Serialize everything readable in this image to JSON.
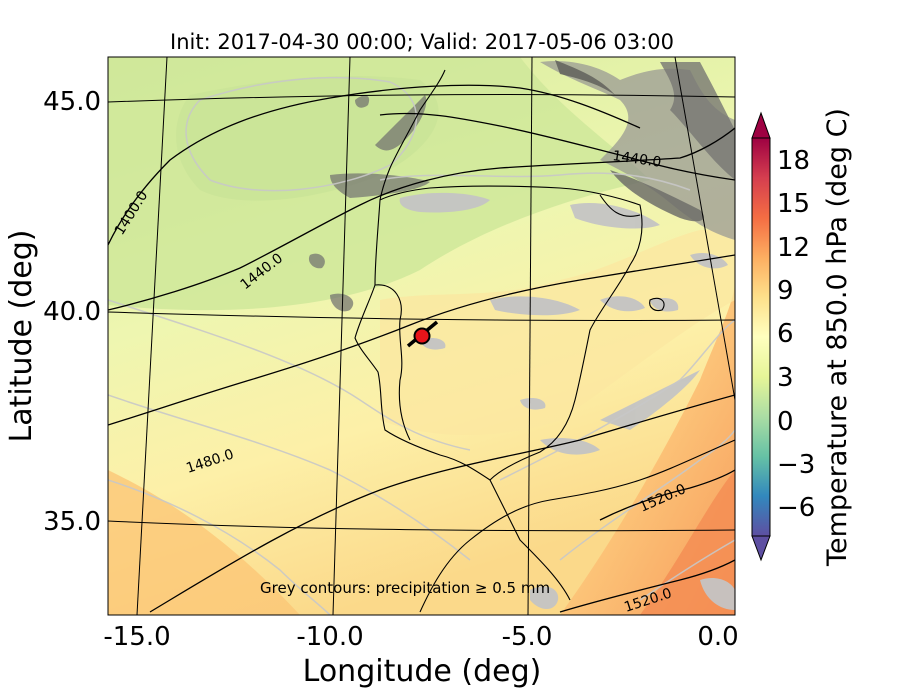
{
  "title": "Init: 2017-04-30 00:00; Valid: 2017-05-06 03:00",
  "axes": {
    "xlabel": "Longitude (deg)",
    "ylabel": "Latitude (deg)",
    "xticks": [
      "-15.0",
      "-10.0",
      "-5.0",
      "0.0"
    ],
    "yticks": [
      "35.0",
      "40.0",
      "45.0"
    ]
  },
  "colorbar": {
    "label": "Temperature at 850.0 hPa (deg C)",
    "ticks": [
      "18",
      "15",
      "12",
      "9",
      "6",
      "3",
      "0",
      "−3",
      "−6"
    ],
    "tick_values": [
      18,
      15,
      12,
      9,
      6,
      3,
      0,
      -3,
      -6
    ],
    "range": [
      -8,
      20
    ],
    "colors": [
      "#5e4fa2",
      "#3288bd",
      "#66c2a5",
      "#abdda4",
      "#e6f598",
      "#ffffbf",
      "#fee08b",
      "#fdae61",
      "#f46d43",
      "#d53e4f",
      "#9e0142"
    ]
  },
  "contour_labels": [
    "1400.0",
    "1440.0",
    "1440.0",
    "1480.0",
    "1520.0",
    "1520.0"
  ],
  "annotation": "Grey contours: precipitation ≥ 0.5 mm",
  "map": {
    "xlim": [
      -16,
      0.2
    ],
    "ylim": [
      32.7,
      46.1
    ],
    "marker": {
      "lon": -7.7,
      "lat": 39.3,
      "color": "#e8141a"
    },
    "colors": {
      "cool_field": "#d4eb9c",
      "mid_field": "#eef6b0",
      "warm_field": "#fdf0a8",
      "hot_field": "#fbb26a",
      "terrain": "#8a8a86",
      "precip": "#c4c4c4"
    }
  }
}
